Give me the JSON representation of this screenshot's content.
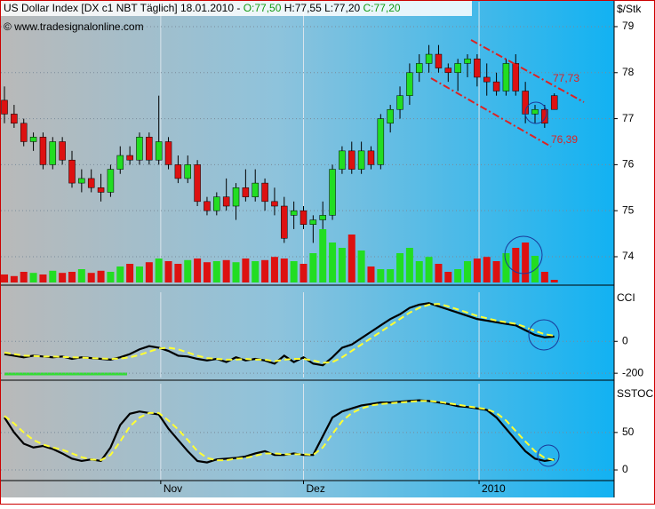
{
  "header": {
    "title": "US Dollar Index [DX c1 NBT  Täglich] 18.01.2010 -",
    "open": "O:77,50",
    "high": "H:77,55",
    "low": "L:77,20",
    "close": "C:77,20",
    "source": "© www.tradesignalonline.com"
  },
  "chart_data": [
    {
      "type": "candlestick",
      "y_unit": "$/Stk",
      "ylim": [
        73.44,
        79.54
      ],
      "yticks": [
        74,
        75,
        76,
        77,
        78,
        79
      ],
      "xlim": [
        -0.37,
        63.2
      ],
      "xticks": [
        {
          "value": 16.2,
          "label": "Nov"
        },
        {
          "value": 31,
          "label": "Dez"
        },
        {
          "value": 49.2,
          "label": "2010"
        }
      ],
      "grid": true,
      "up_color": "#22dd22",
      "down_color": "#dd1111",
      "open": [
        77.4,
        77.1,
        76.9,
        76.5,
        76.6,
        76.0,
        76.5,
        76.1,
        75.6,
        75.7,
        75.5,
        75.4,
        75.9,
        76.2,
        76.1,
        76.6,
        76.1,
        76.5,
        76.0,
        75.7,
        76.0,
        75.2,
        75.0,
        75.3,
        75.1,
        75.5,
        75.3,
        75.6,
        75.2,
        75.1,
        74.9,
        75.0,
        74.7,
        74.8,
        74.9,
        75.9,
        76.3,
        75.9,
        76.3,
        76.0,
        76.9,
        77.2,
        77.5,
        78.0,
        78.2,
        78.4,
        78.1,
        78.0,
        78.2,
        78.3,
        77.9,
        77.8,
        77.6,
        78.2,
        77.6,
        77.1,
        77.2,
        77.5
      ],
      "high": [
        77.7,
        77.3,
        77.0,
        76.7,
        76.7,
        76.6,
        76.6,
        76.3,
        75.9,
        75.9,
        75.8,
        76.0,
        76.4,
        76.4,
        76.7,
        76.7,
        77.5,
        76.6,
        76.2,
        76.2,
        76.1,
        75.3,
        75.4,
        75.7,
        75.6,
        75.9,
        75.9,
        75.7,
        75.5,
        75.3,
        75.2,
        75.1,
        74.9,
        75.2,
        76.0,
        76.4,
        76.5,
        76.5,
        76.4,
        77.1,
        77.3,
        77.7,
        78.2,
        78.4,
        78.6,
        78.6,
        78.2,
        78.3,
        78.4,
        78.4,
        78.2,
        78.0,
        78.3,
        78.4,
        77.8,
        77.3,
        77.3,
        77.55
      ],
      "low": [
        76.9,
        76.8,
        76.4,
        76.3,
        75.9,
        75.9,
        76.0,
        75.5,
        75.4,
        75.4,
        75.2,
        75.3,
        75.8,
        76.0,
        76.0,
        76.0,
        76.0,
        75.9,
        75.6,
        75.6,
        75.1,
        74.9,
        74.9,
        75.0,
        74.8,
        75.2,
        75.2,
        75.0,
        74.9,
        74.3,
        74.6,
        74.6,
        74.3,
        74.6,
        74.8,
        75.8,
        75.8,
        75.8,
        75.9,
        75.9,
        76.7,
        77.0,
        77.3,
        77.8,
        78.0,
        78.0,
        77.8,
        77.6,
        77.9,
        77.7,
        77.5,
        77.5,
        77.5,
        77.5,
        76.9,
        76.9,
        76.8,
        77.2
      ],
      "close": [
        77.1,
        76.9,
        76.5,
        76.6,
        76.0,
        76.5,
        76.1,
        75.6,
        75.7,
        75.5,
        75.4,
        75.9,
        76.2,
        76.1,
        76.6,
        76.1,
        76.5,
        76.0,
        75.7,
        76.0,
        75.2,
        75.0,
        75.3,
        75.1,
        75.5,
        75.3,
        75.6,
        75.2,
        75.1,
        74.4,
        75.0,
        74.7,
        74.8,
        74.9,
        75.9,
        76.3,
        75.9,
        76.3,
        76.0,
        77.0,
        77.2,
        77.5,
        78.0,
        78.2,
        78.4,
        78.1,
        78.0,
        78.2,
        78.3,
        77.9,
        77.8,
        77.6,
        78.2,
        77.6,
        77.1,
        77.2,
        76.9,
        77.2
      ],
      "volume": [
        15,
        12,
        20,
        18,
        15,
        22,
        18,
        20,
        25,
        18,
        22,
        20,
        30,
        35,
        30,
        38,
        45,
        40,
        35,
        42,
        45,
        38,
        40,
        42,
        38,
        45,
        40,
        42,
        48,
        45,
        40,
        35,
        55,
        100,
        75,
        65,
        90,
        60,
        30,
        25,
        25,
        55,
        65,
        40,
        48,
        35,
        20,
        25,
        40,
        45,
        48,
        40,
        55,
        65,
        75,
        50,
        20,
        5
      ],
      "volume_ylim": [
        0,
        100
      ],
      "annotations": [
        {
          "text": "77,73",
          "color": "#dd2222"
        },
        {
          "text": "76,39",
          "color": "#dd2222"
        }
      ]
    },
    {
      "type": "line",
      "title": "CCI",
      "ylim": [
        -227,
        308
      ],
      "yticks": [
        0,
        -200
      ],
      "grid": true,
      "series": [
        {
          "color": "#000000",
          "values": [
            -80,
            -90,
            -100,
            -90,
            -95,
            -100,
            -95,
            -110,
            -100,
            -105,
            -110,
            -115,
            -100,
            -80,
            -50,
            -30,
            -40,
            -60,
            -90,
            -95,
            -110,
            -120,
            -110,
            -130,
            -100,
            -120,
            -110,
            -120,
            -140,
            -90,
            -130,
            -100,
            -140,
            -150,
            -100,
            -40,
            -20,
            20,
            60,
            100,
            140,
            170,
            210,
            230,
            240,
            220,
            200,
            180,
            160,
            140,
            130,
            120,
            110,
            100,
            70,
            40,
            25,
            30
          ]
        },
        {
          "color": "#ffff33",
          "dashed": true,
          "values": [
            -70,
            -80,
            -90,
            -92,
            -95,
            -95,
            -98,
            -100,
            -102,
            -105,
            -108,
            -110,
            -108,
            -100,
            -85,
            -65,
            -45,
            -40,
            -50,
            -70,
            -90,
            -105,
            -110,
            -115,
            -115,
            -110,
            -115,
            -115,
            -125,
            -115,
            -110,
            -110,
            -120,
            -135,
            -130,
            -100,
            -60,
            -20,
            20,
            60,
            100,
            140,
            180,
            210,
            230,
            235,
            220,
            200,
            180,
            160,
            145,
            130,
            120,
            110,
            90,
            65,
            45,
            35
          ]
        }
      ]
    },
    {
      "type": "line",
      "title": "SSTOC",
      "ylim": [
        -13,
        115
      ],
      "yticks": [
        50,
        0
      ],
      "grid": true,
      "series": [
        {
          "color": "#000000",
          "values": [
            70,
            50,
            35,
            30,
            32,
            28,
            22,
            15,
            12,
            14,
            12,
            30,
            60,
            75,
            78,
            76,
            74,
            55,
            40,
            25,
            12,
            10,
            14,
            15,
            16,
            18,
            22,
            25,
            20,
            20,
            22,
            20,
            20,
            45,
            70,
            78,
            82,
            86,
            88,
            90,
            90,
            91,
            92,
            93,
            92,
            90,
            88,
            85,
            84,
            82,
            80,
            70,
            55,
            40,
            25,
            15,
            12,
            14
          ]
        },
        {
          "color": "#ffff33",
          "dashed": true,
          "values": [
            72,
            62,
            50,
            40,
            34,
            30,
            27,
            22,
            17,
            14,
            13,
            20,
            38,
            58,
            70,
            76,
            76,
            66,
            54,
            40,
            25,
            16,
            13,
            13,
            15,
            16,
            19,
            22,
            22,
            21,
            21,
            21,
            20,
            30,
            48,
            65,
            76,
            82,
            86,
            88,
            89,
            90,
            91,
            92,
            92,
            91,
            89,
            87,
            85,
            83,
            81,
            76,
            66,
            52,
            38,
            25,
            16,
            13
          ]
        }
      ]
    }
  ]
}
